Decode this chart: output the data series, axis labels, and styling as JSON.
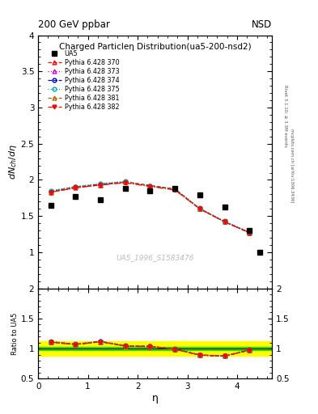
{
  "title_top": "200 GeV ppbar",
  "title_right": "NSD",
  "plot_title": "Charged Particleη Distribution",
  "plot_subtitle": "(ua5-200-nsd2)",
  "xlabel": "η",
  "ylabel_main": "dN_{ch}/dη",
  "ylabel_ratio": "Ratio to UA5",
  "watermark": "UA5_1996_S1583476",
  "right_label": "Rivet 3.1.10; ≥ 3.3M events",
  "right_label2": "mcplots.cern.ch [arXiv:1306.3436]",
  "ua5_eta": [
    0.25,
    0.75,
    1.25,
    1.75,
    2.25,
    2.75,
    3.25,
    3.75,
    4.25,
    4.45
  ],
  "ua5_vals": [
    1.65,
    1.77,
    1.73,
    1.88,
    1.85,
    1.88,
    1.79,
    1.62,
    1.3,
    1.0
  ],
  "pythia_eta": [
    0.25,
    0.75,
    1.25,
    1.75,
    2.25,
    2.75,
    3.25,
    3.75,
    4.25
  ],
  "p370_vals": [
    1.83,
    1.89,
    1.93,
    1.97,
    1.92,
    1.87,
    1.6,
    1.42,
    1.27
  ],
  "p373_vals": [
    1.84,
    1.9,
    1.93,
    1.97,
    1.91,
    1.87,
    1.6,
    1.42,
    1.27
  ],
  "p374_vals": [
    1.84,
    1.9,
    1.94,
    1.97,
    1.92,
    1.87,
    1.6,
    1.42,
    1.27
  ],
  "p375_vals": [
    1.85,
    1.91,
    1.95,
    1.98,
    1.92,
    1.88,
    1.61,
    1.43,
    1.28
  ],
  "p381_vals": [
    1.83,
    1.9,
    1.93,
    1.97,
    1.92,
    1.87,
    1.6,
    1.42,
    1.27
  ],
  "p382_vals": [
    1.83,
    1.89,
    1.93,
    1.96,
    1.91,
    1.86,
    1.6,
    1.42,
    1.27
  ],
  "colors": {
    "370": "#ff0000",
    "373": "#cc00cc",
    "374": "#0000cc",
    "375": "#00aaaa",
    "381": "#aa6600",
    "382": "#ff0000"
  },
  "linestyles": {
    "370": "--",
    "373": ":",
    "374": "--",
    "375": ":",
    "381": "--",
    "382": "-."
  },
  "markers": {
    "370": "^",
    "373": "^",
    "374": "o",
    "375": "o",
    "381": "^",
    "382": "v"
  },
  "markerfacecolors": {
    "370": "none",
    "373": "none",
    "374": "none",
    "375": "none",
    "381": "none",
    "382": "#ff0000"
  },
  "ylim_main": [
    0.5,
    4.0
  ],
  "ylim_ratio": [
    0.5,
    2.0
  ],
  "xlim": [
    0.0,
    4.7
  ],
  "green_band_y1": 0.97,
  "green_band_y2": 1.03,
  "yellow_band_y1": 0.88,
  "yellow_band_y2": 1.12
}
